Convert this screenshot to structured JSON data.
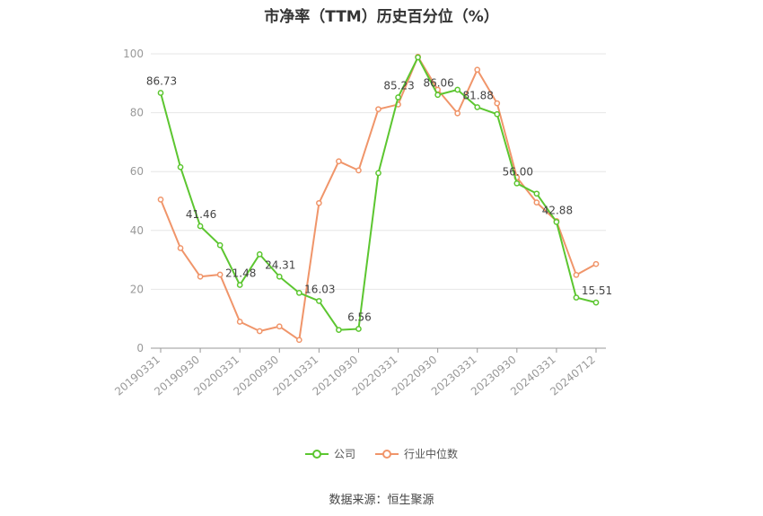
{
  "chart_data": {
    "type": "line",
    "title": "市净率（TTM）历史百分位（%）",
    "x": [
      "20190331",
      "20190630",
      "20190930",
      "20191231",
      "20200331",
      "20200630",
      "20200930",
      "20201231",
      "20210331",
      "20210630",
      "20210930",
      "20211231",
      "20220331",
      "20220630",
      "20220930",
      "20221231",
      "20230331",
      "20230630",
      "20230930",
      "20231231",
      "20240331",
      "20240630",
      "20240712"
    ],
    "x_tick_labels": [
      "20190331",
      "20190930",
      "20200331",
      "20200930",
      "20210331",
      "20210930",
      "20220331",
      "20220930",
      "20230331",
      "20230930",
      "20240331",
      "20240712"
    ],
    "y_ticks": [
      0,
      20,
      40,
      60,
      80,
      100
    ],
    "ylim": [
      0,
      100
    ],
    "grid": true,
    "legend_position": "bottom",
    "series": [
      {
        "name": "公司",
        "color": "#5cc630",
        "values": [
          86.73,
          61.5,
          41.46,
          35.0,
          21.48,
          31.9,
          24.31,
          18.8,
          16.03,
          6.2,
          6.56,
          59.5,
          85.23,
          98.8,
          86.06,
          87.8,
          81.88,
          79.5,
          56.0,
          52.5,
          42.88,
          17.2,
          15.51
        ],
        "labels": [
          "86.73",
          "",
          "41.46",
          "",
          "21.48",
          "",
          "24.31",
          "",
          "16.03",
          "",
          "6.56",
          "",
          "85.23",
          "",
          "86.06",
          "",
          "81.88",
          "",
          "56.00",
          "",
          "42.88",
          "",
          "15.51"
        ]
      },
      {
        "name": "行业中位数",
        "color": "#f0956a",
        "values": [
          50.5,
          34.0,
          24.3,
          25.0,
          9.0,
          5.8,
          7.4,
          2.8,
          49.3,
          63.5,
          60.4,
          81.2,
          82.8,
          99.0,
          87.8,
          79.8,
          94.6,
          83.2,
          58.0,
          49.5,
          43.2,
          24.9,
          28.6
        ]
      }
    ]
  },
  "source": "数据来源：恒生聚源"
}
